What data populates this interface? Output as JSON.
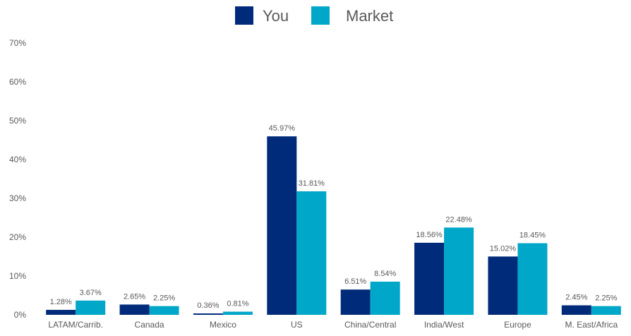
{
  "chart_data": {
    "type": "bar",
    "categories": [
      "LATAM/Carrib.",
      "Canada",
      "Mexico",
      "US",
      "China/Central",
      "India/West",
      "Europe",
      "M. East/Africa"
    ],
    "series": [
      {
        "name": "You",
        "color": "#002b7a",
        "values": [
          1.28,
          2.65,
          0.36,
          45.97,
          6.51,
          18.56,
          15.02,
          2.45
        ],
        "labels": [
          "1.28%",
          "2.65%",
          "0.36%",
          "45.97%",
          "6.51%",
          "18.56%",
          "15.02%",
          "2.45%"
        ]
      },
      {
        "name": "Market",
        "color": "#00a7c8",
        "values": [
          3.67,
          2.25,
          0.81,
          31.81,
          8.54,
          22.48,
          18.45,
          2.25
        ],
        "labels": [
          "3.67%",
          "2.25%",
          "0.81%",
          "31.81%",
          "8.54%",
          "22.48%",
          "18.45%",
          "2.25%"
        ]
      }
    ],
    "ylim": [
      0,
      70
    ],
    "yticks": [
      0,
      10,
      20,
      30,
      40,
      50,
      60,
      70
    ],
    "ytick_labels": [
      "0%",
      "10%",
      "20%",
      "30%",
      "40%",
      "50%",
      "60%",
      "70%"
    ],
    "grid": false,
    "legend": "top-center",
    "title": "",
    "xlabel": "",
    "ylabel": ""
  }
}
